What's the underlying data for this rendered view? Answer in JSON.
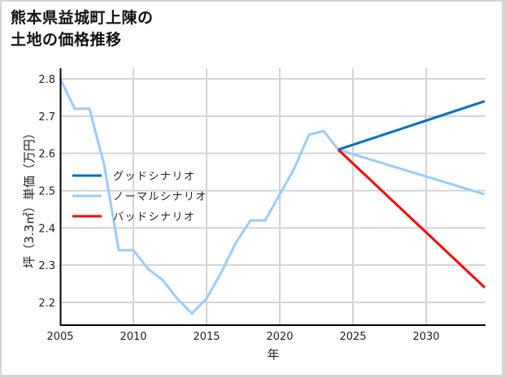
{
  "title": {
    "line1": "熊本県益城町上陳の",
    "line2": "土地の価格推移"
  },
  "colors": {
    "good": "#0070c0",
    "normal": "#99ccff",
    "bad": "#ff0000",
    "grid": "#d3d3d3",
    "axis": "#000000"
  },
  "axes": {
    "xlabel": "年",
    "ylabel": "坪（3.3㎡）単価（万円）",
    "xticks": [
      "2005",
      "2010",
      "2015",
      "2020",
      "2025",
      "2030"
    ],
    "yticks": [
      "2.8",
      "2.7",
      "2.6",
      "2.5",
      "2.4",
      "2.3",
      "2.2"
    ]
  },
  "legend": {
    "good": "グッドシナリオ",
    "normal": "ノーマルシナリオ",
    "bad": "バッドシナリオ"
  },
  "chart_data": {
    "type": "line",
    "title": "熊本県益城町上陳の土地の価格推移",
    "xlabel": "年",
    "ylabel": "坪（3.3㎡）単価（万円）",
    "xlim": [
      2005,
      2034
    ],
    "ylim": [
      2.14,
      2.81
    ],
    "grid": true,
    "legend_position": "upper-left (middle)",
    "series": [
      {
        "name": "ノーマルシナリオ",
        "color": "#99ccff",
        "x": [
          2005,
          2006,
          2007,
          2008,
          2009,
          2010,
          2011,
          2012,
          2013,
          2014,
          2015,
          2016,
          2017,
          2018,
          2019,
          2020,
          2021,
          2022,
          2023,
          2024,
          2034
        ],
        "values": [
          2.8,
          2.72,
          2.72,
          2.57,
          2.34,
          2.34,
          2.29,
          2.26,
          2.21,
          2.17,
          2.21,
          2.28,
          2.36,
          2.42,
          2.42,
          2.49,
          2.56,
          2.65,
          2.66,
          2.61,
          2.49
        ]
      },
      {
        "name": "グッドシナリオ",
        "color": "#0070c0",
        "x": [
          2024,
          2034
        ],
        "values": [
          2.61,
          2.74
        ]
      },
      {
        "name": "バッドシナリオ",
        "color": "#ff0000",
        "x": [
          2024,
          2034
        ],
        "values": [
          2.61,
          2.24
        ]
      }
    ]
  }
}
